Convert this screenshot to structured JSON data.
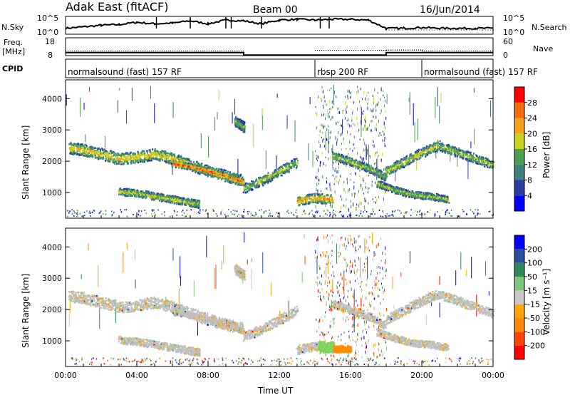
{
  "header": {
    "station": "Adak East (fitACF)",
    "beam": "Beam 00",
    "date": "16/Jun/2014"
  },
  "chart_data": [
    {
      "type": "line",
      "panel": "noise",
      "left_label": "N.Sky",
      "right_label": "N.Search",
      "left_ticks": [
        "10^5",
        "10^0"
      ],
      "right_ticks": [
        "10^5",
        "10^0"
      ],
      "series": [
        {
          "values": [
            0.3,
            0.4,
            0.5,
            0.55,
            0.7,
            0.6,
            0.65,
            0.8,
            0.6,
            0.85,
            0.8,
            0.6,
            0.85,
            0.9,
            0.85,
            0.9,
            0.9,
            0.85,
            0.3,
            0.3,
            0.35,
            0.3,
            0.3,
            0.3,
            0.3
          ]
        }
      ],
      "x": [
        0,
        1,
        2,
        3,
        4,
        5,
        6,
        7,
        8,
        9,
        10,
        11,
        12,
        13,
        14,
        15,
        16,
        17,
        18,
        19,
        20,
        21,
        22,
        23,
        24
      ],
      "spikes_hours": [
        5.1,
        7.0,
        9.0,
        9.3,
        11.0,
        14.3,
        14.8
      ]
    },
    {
      "type": "line",
      "panel": "frequency",
      "left_label_top": "Freq.",
      "left_label_bottom": "[MHz]",
      "right_label": "Nave",
      "left_ticks": [
        "18",
        "8"
      ],
      "right_ticks": [
        "60",
        "0"
      ],
      "series": [
        {
          "name": "Freq.",
          "x": [
            0,
            10,
            10,
            14,
            14,
            18,
            18,
            24
          ],
          "values": [
            11,
            11,
            9.3,
            9.3,
            9.3,
            9.3,
            11,
            11
          ]
        },
        {
          "name": "Nave",
          "x": [
            0,
            10,
            10,
            14,
            14,
            18,
            18,
            20,
            20,
            24
          ],
          "values": [
            12,
            12,
            null,
            null,
            15,
            15,
            16,
            16,
            12,
            12
          ]
        }
      ]
    },
    {
      "type": "table",
      "panel": "cpid",
      "label": "CPID",
      "segments": [
        {
          "start": 0,
          "end": 14,
          "text": "normalsound (fast) 157 RF"
        },
        {
          "start": 14,
          "end": 20,
          "text": "rbsp 200 RF"
        },
        {
          "start": 20,
          "end": 24,
          "text": "normalsound (fast) 157 RF"
        }
      ]
    },
    {
      "type": "heatmap",
      "panel": "power",
      "ylabel": "Slant Range [km]",
      "yticks": [
        1000,
        2000,
        3000,
        4000
      ],
      "ylim": [
        180,
        4600
      ],
      "xlim": [
        0,
        24
      ],
      "colorbar": {
        "label": "Power [dB]",
        "ticks": [
          4,
          8,
          12,
          16,
          20,
          24,
          28
        ],
        "colors": [
          "#0000ff",
          "#2b3fa0",
          "#3f7f7f",
          "#4c9f4c",
          "#c8d41e",
          "#f5a319",
          "#f46e0f",
          "#ff0000"
        ]
      },
      "bands": [
        {
          "x": [
            0.2,
            1.0,
            2.0,
            3.0,
            4.0,
            5.0,
            6.0,
            7.0,
            8.0,
            9.0,
            10.0
          ],
          "y": [
            2450,
            2380,
            2250,
            2100,
            2150,
            2250,
            2100,
            1900,
            1700,
            1550,
            1400
          ],
          "w": 180,
          "i": 0.55
        },
        {
          "x": [
            6.0,
            7.0,
            8.0,
            9.0,
            10.0
          ],
          "y": [
            1950,
            1850,
            1700,
            1550,
            1350
          ],
          "w": 100,
          "i": 0.75
        },
        {
          "x": [
            3.0,
            4.0,
            5.0,
            6.0,
            7.0,
            7.5
          ],
          "y": [
            1050,
            1000,
            900,
            800,
            700,
            650
          ],
          "w": 120,
          "i": 0.5
        },
        {
          "x": [
            9.5,
            9.8,
            10.0
          ],
          "y": [
            3300,
            3200,
            3100
          ],
          "w": 150,
          "i": 0.4
        },
        {
          "x": [
            10.0,
            11.0,
            12.0,
            13.0
          ],
          "y": [
            1150,
            1400,
            1700,
            2000
          ],
          "w": 150,
          "i": 0.45
        },
        {
          "x": [
            13.0,
            14.0,
            15.0
          ],
          "y": [
            750,
            850,
            800
          ],
          "w": 150,
          "i": 0.65
        },
        {
          "x": [
            15.0,
            16.0,
            17.0,
            18.0
          ],
          "y": [
            2200,
            2000,
            1800,
            1500
          ],
          "w": 130,
          "i": 0.45
        },
        {
          "x": [
            17.5,
            18.5,
            19.5,
            20.5,
            21.5
          ],
          "y": [
            1300,
            1100,
            950,
            900,
            800
          ],
          "w": 110,
          "i": 0.45
        },
        {
          "x": [
            18.0,
            19.0,
            20.0,
            21.0
          ],
          "y": [
            1700,
            2000,
            2300,
            2550
          ],
          "w": 150,
          "i": 0.5
        },
        {
          "x": [
            21.0,
            22.0,
            23.0,
            24.0
          ],
          "y": [
            2500,
            2300,
            2100,
            1900
          ],
          "w": 140,
          "i": 0.45
        }
      ]
    },
    {
      "type": "heatmap",
      "panel": "velocity",
      "ylabel": "Slant Range [km]",
      "yticks": [
        1000,
        2000,
        3000,
        4000
      ],
      "ylim": [
        180,
        4600
      ],
      "xlim": [
        0,
        24
      ],
      "xticks": [
        "00:00",
        "04:00",
        "08:00",
        "12:00",
        "16:00",
        "20:00",
        "00:00"
      ],
      "xlabel": "Time UT",
      "colorbar": {
        "label": "Velocity [m s⁻¹]",
        "ticks": [
          -200,
          -100,
          -50,
          -15,
          15,
          50,
          100,
          200
        ],
        "colors": [
          "#ff0000",
          "#ff4500",
          "#ff8c00",
          "#ffa500",
          "#c8c8c8",
          "#7fc67f",
          "#2e8b57",
          "#2b4fa0",
          "#0000ff"
        ]
      },
      "highlights": [
        {
          "x": 14.6,
          "y": 820,
          "w": 0.9,
          "h": 350,
          "color": "#7fd35a"
        },
        {
          "x": 15.5,
          "y": 760,
          "w": 1.0,
          "h": 220,
          "color": "#ff8c00"
        }
      ]
    }
  ]
}
